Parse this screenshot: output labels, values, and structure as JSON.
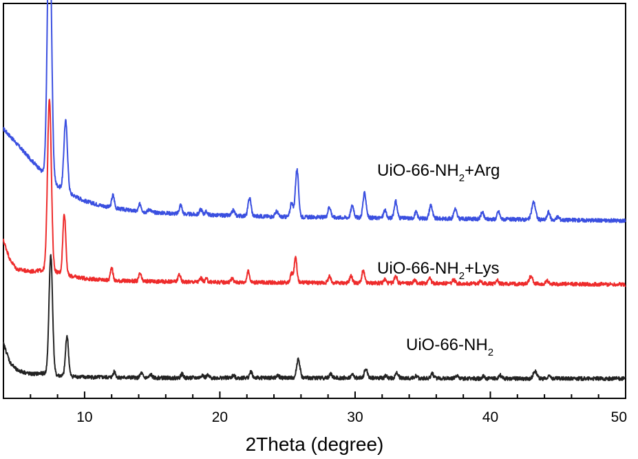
{
  "chart_data": {
    "type": "line",
    "xlabel": "2Theta (degree)",
    "ylabel": "",
    "xlim": [
      4,
      50
    ],
    "y_axis_labels_shown": false,
    "grid": false,
    "x_ticks": [
      10,
      20,
      30,
      40,
      50
    ],
    "x_tick_labels": [
      "10",
      "20",
      "30",
      "40",
      "50"
    ],
    "series": [
      {
        "name": "UiO-66-NH2+Arg",
        "label_text": "UiO-66-NH",
        "label_sub": "2",
        "label_suffix": "+Arg",
        "color": "#3a4fe0",
        "baseline": [
          [
            4,
            23.5
          ],
          [
            5,
            21.5
          ],
          [
            6,
            19.5
          ],
          [
            7,
            17.6
          ],
          [
            7.3,
            17.3
          ],
          [
            8,
            16.0
          ],
          [
            9,
            14.9
          ],
          [
            10,
            14.0
          ],
          [
            11,
            13.5
          ],
          [
            12,
            13.1
          ],
          [
            14,
            12.6
          ],
          [
            17,
            12.3
          ],
          [
            20,
            12.1
          ],
          [
            25,
            11.9
          ],
          [
            30,
            11.8
          ],
          [
            35,
            11.7
          ],
          [
            40,
            11.6
          ],
          [
            45,
            11.5
          ],
          [
            50,
            11.4
          ]
        ],
        "peaks": [
          [
            7.4,
            36.3,
            0.15
          ],
          [
            8.6,
            9.2,
            0.13
          ],
          [
            12.1,
            1.7,
            0.1
          ],
          [
            14.1,
            1.0,
            0.1
          ],
          [
            14.8,
            0.4,
            0.1
          ],
          [
            17.1,
            1.2,
            0.1
          ],
          [
            18.6,
            0.7,
            0.1
          ],
          [
            19.0,
            0.4,
            0.1
          ],
          [
            21.0,
            0.7,
            0.1
          ],
          [
            22.2,
            2.4,
            0.11
          ],
          [
            24.2,
            0.7,
            0.1
          ],
          [
            25.3,
            1.9,
            0.1
          ],
          [
            25.7,
            6.2,
            0.12
          ],
          [
            28.1,
            1.4,
            0.11
          ],
          [
            29.8,
            1.6,
            0.11
          ],
          [
            30.7,
            3.2,
            0.12
          ],
          [
            32.2,
            1.0,
            0.1
          ],
          [
            33.0,
            2.2,
            0.11
          ],
          [
            34.5,
            0.8,
            0.1
          ],
          [
            35.6,
            1.8,
            0.11
          ],
          [
            37.4,
            1.3,
            0.11
          ],
          [
            39.4,
            0.9,
            0.1
          ],
          [
            40.6,
            1.0,
            0.1
          ],
          [
            43.2,
            2.3,
            0.14
          ],
          [
            44.3,
            1.0,
            0.1
          ],
          [
            45.0,
            0.4,
            0.1
          ]
        ]
      },
      {
        "name": "UiO-66-NH2+Lys",
        "label_text": "UiO-66-NH",
        "label_sub": "2",
        "label_suffix": "+Lys",
        "color": "#ee2b2b",
        "baseline": [
          [
            4,
            8.8
          ],
          [
            4.5,
            6.2
          ],
          [
            5,
            5.0
          ],
          [
            6,
            4.7
          ],
          [
            7,
            4.9
          ],
          [
            7.3,
            5.1
          ],
          [
            8,
            4.6
          ],
          [
            9,
            4.1
          ],
          [
            10,
            3.8
          ],
          [
            12,
            3.5
          ],
          [
            15,
            3.4
          ],
          [
            20,
            3.3
          ],
          [
            30,
            3.2
          ],
          [
            40,
            3.1
          ],
          [
            50,
            3.0
          ]
        ],
        "peaks": [
          [
            7.4,
            22.5,
            0.14
          ],
          [
            8.5,
            8.0,
            0.11
          ],
          [
            12.0,
            1.8,
            0.09
          ],
          [
            14.1,
            1.0,
            0.09
          ],
          [
            17.0,
            1.0,
            0.09
          ],
          [
            18.6,
            0.5,
            0.09
          ],
          [
            19.0,
            0.4,
            0.09
          ],
          [
            20.9,
            0.5,
            0.09
          ],
          [
            22.1,
            1.4,
            0.1
          ],
          [
            25.3,
            1.2,
            0.09
          ],
          [
            25.6,
            3.3,
            0.1
          ],
          [
            28.1,
            0.8,
            0.1
          ],
          [
            29.7,
            0.9,
            0.1
          ],
          [
            30.6,
            1.6,
            0.1
          ],
          [
            32.2,
            0.5,
            0.09
          ],
          [
            33.0,
            1.0,
            0.1
          ],
          [
            34.4,
            0.4,
            0.09
          ],
          [
            35.5,
            0.8,
            0.1
          ],
          [
            37.3,
            0.5,
            0.1
          ],
          [
            39.3,
            0.4,
            0.09
          ],
          [
            40.5,
            0.5,
            0.09
          ],
          [
            43.0,
            1.0,
            0.13
          ],
          [
            44.2,
            0.4,
            0.09
          ]
        ]
      },
      {
        "name": "UiO-66-NH2",
        "label_text": "UiO-66-NH",
        "label_sub": "2",
        "label_suffix": "",
        "color": "#222222",
        "baseline": [
          [
            4,
            -4.8
          ],
          [
            4.5,
            -7.3
          ],
          [
            5,
            -8.3
          ],
          [
            6,
            -8.8
          ],
          [
            7,
            -8.7
          ],
          [
            7.5,
            -8.6
          ],
          [
            8,
            -9.0
          ],
          [
            9,
            -9.1
          ],
          [
            10,
            -9.2
          ],
          [
            15,
            -9.3
          ],
          [
            20,
            -9.3
          ],
          [
            30,
            -9.3
          ],
          [
            40,
            -9.4
          ],
          [
            50,
            -9.4
          ]
        ],
        "peaks": [
          [
            7.5,
            15.5,
            0.13
          ],
          [
            8.7,
            5.3,
            0.11
          ],
          [
            12.2,
            0.8,
            0.09
          ],
          [
            14.2,
            0.6,
            0.09
          ],
          [
            14.9,
            0.4,
            0.09
          ],
          [
            17.2,
            0.5,
            0.09
          ],
          [
            18.7,
            0.4,
            0.09
          ],
          [
            19.1,
            0.3,
            0.09
          ],
          [
            21.0,
            0.3,
            0.09
          ],
          [
            22.3,
            0.8,
            0.1
          ],
          [
            24.3,
            0.3,
            0.09
          ],
          [
            25.8,
            2.5,
            0.12
          ],
          [
            28.2,
            0.5,
            0.1
          ],
          [
            29.8,
            0.4,
            0.1
          ],
          [
            30.8,
            1.2,
            0.11
          ],
          [
            32.3,
            0.3,
            0.09
          ],
          [
            33.1,
            0.7,
            0.1
          ],
          [
            34.5,
            0.3,
            0.09
          ],
          [
            35.7,
            0.6,
            0.1
          ],
          [
            37.5,
            0.4,
            0.1
          ],
          [
            39.5,
            0.3,
            0.09
          ],
          [
            40.7,
            0.5,
            0.1
          ],
          [
            43.3,
            1.0,
            0.13
          ],
          [
            44.4,
            0.4,
            0.09
          ]
        ]
      }
    ]
  }
}
